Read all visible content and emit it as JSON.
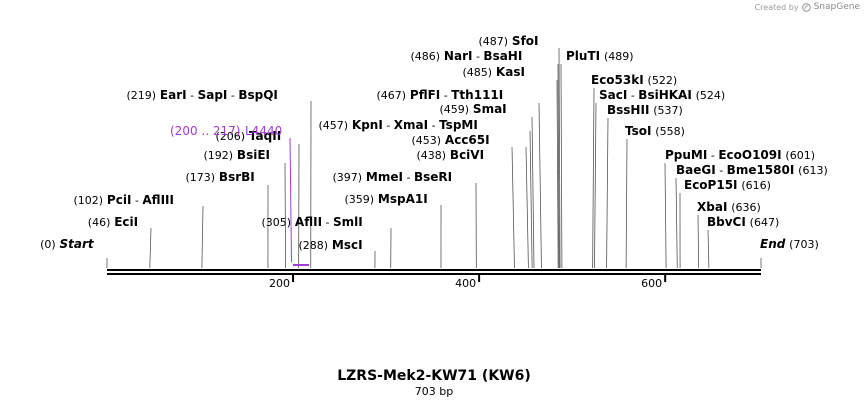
{
  "credit": {
    "created_by": "Created by",
    "brand": "SnapGene"
  },
  "map": {
    "title": "LZRS-Mek2-KW71 (KW6)",
    "length": "703 bp",
    "total_bp": 703,
    "ticks": [
      "200",
      "400",
      "600"
    ],
    "tick_values": [
      200,
      400,
      600
    ]
  },
  "sites": [
    {
      "bp": 0,
      "pos": "(0)",
      "names": [
        "Start"
      ],
      "italic": true
    },
    {
      "bp": 46,
      "pos": "(46)",
      "names": [
        "EciI"
      ]
    },
    {
      "bp": 102,
      "pos": "(102)",
      "names": [
        "PciI",
        "AflIII"
      ]
    },
    {
      "bp": 173,
      "pos": "(173)",
      "names": [
        "BsrBI"
      ]
    },
    {
      "bp": 192,
      "pos": "(192)",
      "names": [
        "BsiEI"
      ]
    },
    {
      "bp": 206,
      "pos": "(206)",
      "names": [
        "TaqII"
      ]
    },
    {
      "bp": 219,
      "pos": "(219)",
      "names": [
        "EarI",
        "SapI",
        "BspQI"
      ]
    },
    {
      "bp": 305,
      "pos": "(305)",
      "names": [
        "AflII",
        "SmlI"
      ]
    },
    {
      "bp": 288,
      "pos": "(288)",
      "names": [
        "MscI"
      ]
    },
    {
      "bp": 359,
      "pos": "(359)",
      "names": [
        "MspA1I"
      ]
    },
    {
      "bp": 397,
      "pos": "(397)",
      "names": [
        "MmeI",
        "BseRI"
      ]
    },
    {
      "bp": 438,
      "pos": "(438)",
      "names": [
        "BciVI"
      ]
    },
    {
      "bp": 453,
      "pos": "(453)",
      "names": [
        "Acc65I"
      ]
    },
    {
      "bp": 457,
      "pos": "(457)",
      "names": [
        "KpnI",
        "XmaI",
        "TspMI"
      ]
    },
    {
      "bp": 459,
      "pos": "(459)",
      "names": [
        "SmaI"
      ]
    },
    {
      "bp": 467,
      "pos": "(467)",
      "names": [
        "PflFI",
        "Tth111I"
      ]
    },
    {
      "bp": 485,
      "pos": "(485)",
      "names": [
        "KasI"
      ]
    },
    {
      "bp": 486,
      "pos": "(486)",
      "names": [
        "NarI",
        "BsaHI"
      ]
    },
    {
      "bp": 487,
      "pos": "(487)",
      "names": [
        "SfoI"
      ]
    },
    {
      "bp": 489,
      "pos": "(489)",
      "names": [
        "PluTI"
      ]
    },
    {
      "bp": 522,
      "pos": "(522)",
      "names": [
        "Eco53kI"
      ]
    },
    {
      "bp": 524,
      "pos": "(524)",
      "names": [
        "SacI",
        "BsiHKAI"
      ]
    },
    {
      "bp": 537,
      "pos": "(537)",
      "names": [
        "BssHII"
      ]
    },
    {
      "bp": 558,
      "pos": "(558)",
      "names": [
        "TsoI"
      ]
    },
    {
      "bp": 601,
      "pos": "(601)",
      "names": [
        "PpuMI",
        "EcoO109I"
      ]
    },
    {
      "bp": 613,
      "pos": "(613)",
      "names": [
        "BaeGI",
        "Bme1580I"
      ]
    },
    {
      "bp": 616,
      "pos": "(616)",
      "names": [
        "EcoP15I"
      ]
    },
    {
      "bp": 636,
      "pos": "(636)",
      "names": [
        "XbaI"
      ]
    },
    {
      "bp": 647,
      "pos": "(647)",
      "names": [
        "BbvCI"
      ]
    },
    {
      "bp": 703,
      "pos": "(703)",
      "names": [
        "End"
      ],
      "italic": true,
      "pos_after": true
    }
  ],
  "feature": {
    "name": "L4440",
    "range": "(200 .. 217)",
    "start": 200,
    "end": 217,
    "color": "#a13bd6"
  }
}
